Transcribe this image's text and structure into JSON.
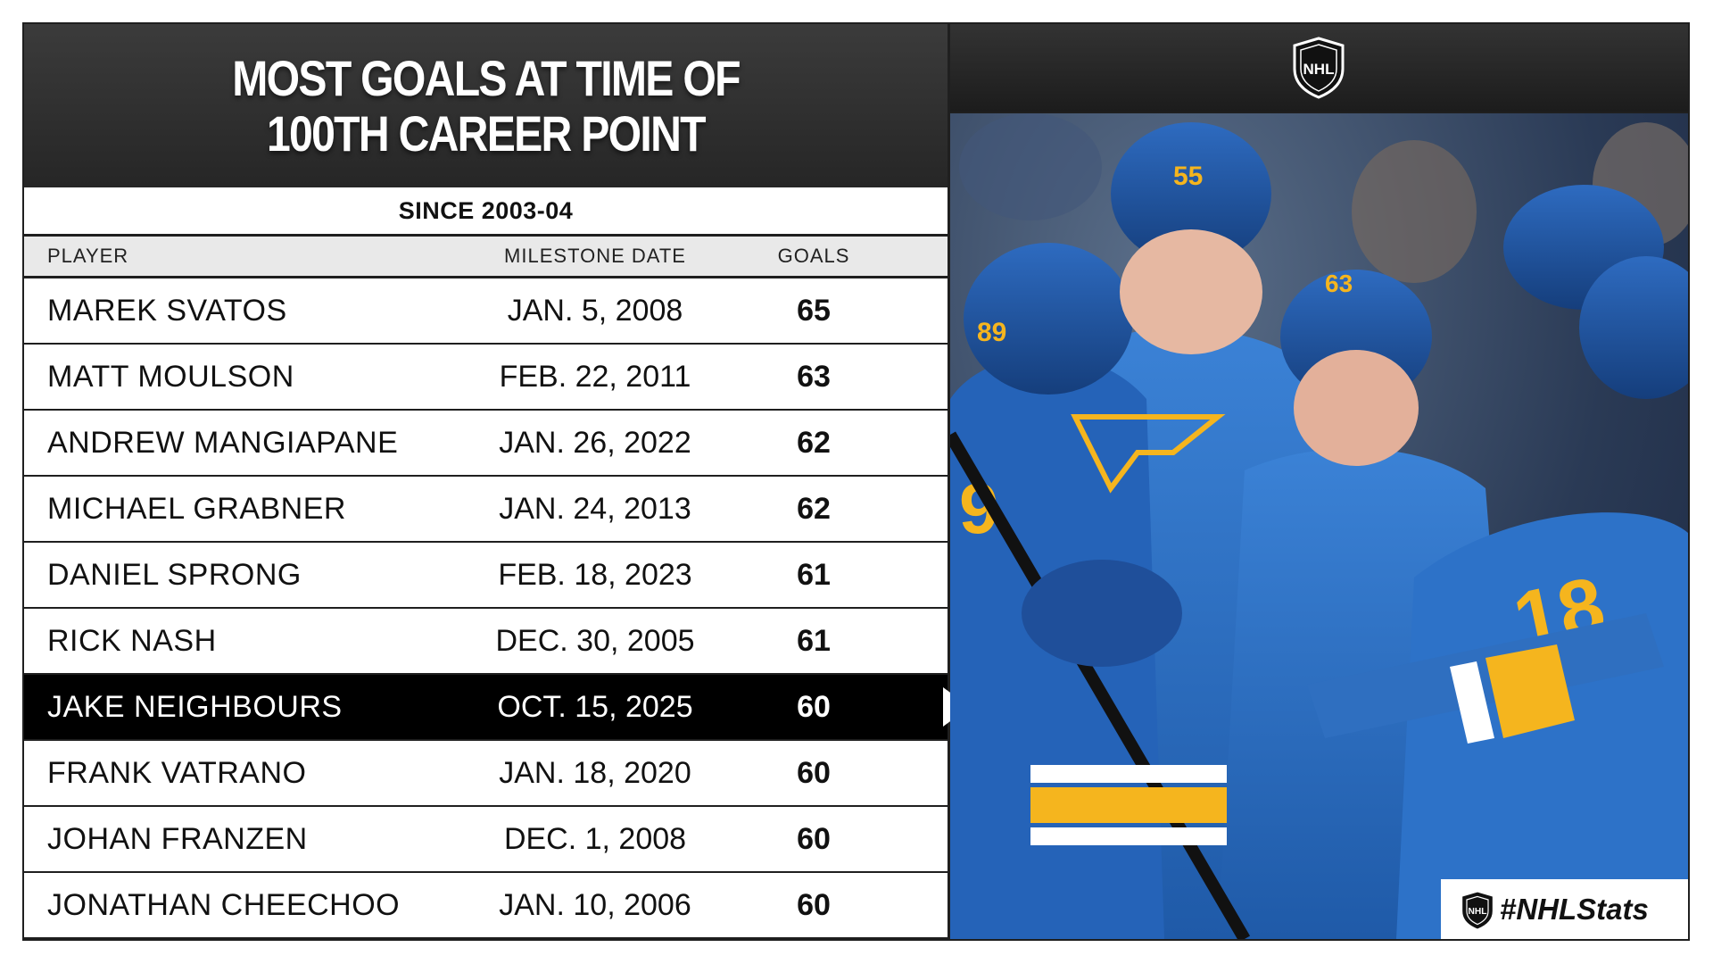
{
  "title": {
    "line1": "MOST GOALS AT TIME OF",
    "line2": "100TH CAREER POINT"
  },
  "subtitle": "SINCE 2003-04",
  "columns": {
    "player": "PLAYER",
    "date": "MILESTONE DATE",
    "goals": "GOALS"
  },
  "rows": [
    {
      "player": "MAREK SVATOS",
      "date": "JAN. 5, 2008",
      "goals": "65"
    },
    {
      "player": "MATT MOULSON",
      "date": "FEB. 22, 2011",
      "goals": "63"
    },
    {
      "player": "ANDREW MANGIAPANE",
      "date": "JAN. 26, 2022",
      "goals": "62"
    },
    {
      "player": "MICHAEL GRABNER",
      "date": "JAN. 24, 2013",
      "goals": "62"
    },
    {
      "player": "DANIEL SPRONG",
      "date": "FEB. 18, 2023",
      "goals": "61"
    },
    {
      "player": "RICK NASH",
      "date": "DEC. 30, 2005",
      "goals": "61"
    },
    {
      "player": "JAKE NEIGHBOURS",
      "date": "OCT. 15, 2025",
      "goals": "60"
    },
    {
      "player": "FRANK VATRANO",
      "date": "JAN. 18, 2020",
      "goals": "60"
    },
    {
      "player": "JOHAN FRANZEN",
      "date": "DEC. 1, 2008",
      "goals": "60"
    },
    {
      "player": "JONATHAN CHEECHOO",
      "date": "JAN. 10, 2006",
      "goals": "60"
    }
  ],
  "highlight_row": 6,
  "brand": {
    "logo_icon": "nhl-shield-icon",
    "hashtag": "#NHLStats"
  },
  "colors": {
    "blues_blue": "#2f6fc0",
    "blues_gold": "#f5b51e",
    "header_dark": "#262626",
    "highlight": "#000000"
  }
}
